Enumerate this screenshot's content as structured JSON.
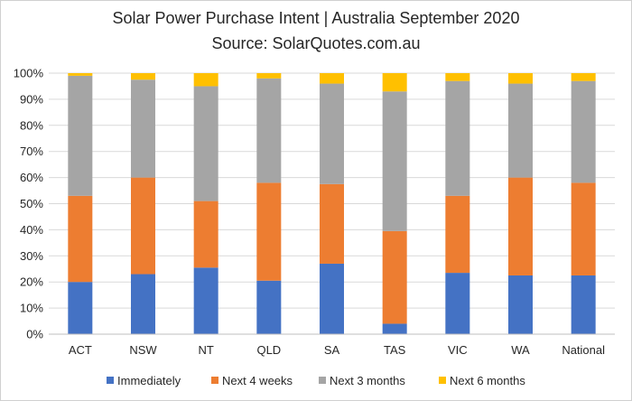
{
  "chart_data": {
    "type": "bar",
    "stacked": true,
    "title": "Solar Power Purchase Intent | Australia September 2020",
    "subtitle": "Source: SolarQuotes.com.au",
    "categories": [
      "ACT",
      "NSW",
      "NT",
      "QLD",
      "SA",
      "TAS",
      "VIC",
      "WA",
      "National"
    ],
    "series": [
      {
        "name": "Immediately",
        "color": "#4472C4",
        "values": [
          20,
          23,
          25.5,
          20.5,
          27,
          4,
          23.5,
          22.5,
          22.5
        ]
      },
      {
        "name": "Next 4 weeks",
        "color": "#ED7D31",
        "values": [
          33,
          37,
          25.5,
          37.5,
          30.5,
          35.5,
          29.5,
          37.5,
          35.5
        ]
      },
      {
        "name": "Next 3 months",
        "color": "#A5A5A5",
        "values": [
          46,
          37.5,
          44,
          40,
          38.5,
          53.5,
          44,
          36,
          39
        ]
      },
      {
        "name": "Next 6 months",
        "color": "#FFC000",
        "values": [
          1,
          2.5,
          5,
          2,
          4,
          7,
          3,
          4,
          3
        ]
      }
    ],
    "yticks": [
      "0%",
      "10%",
      "20%",
      "30%",
      "40%",
      "50%",
      "60%",
      "70%",
      "80%",
      "90%",
      "100%"
    ],
    "ylim": [
      0,
      100
    ],
    "xlabel": "",
    "ylabel": "",
    "grid": true,
    "legend": "bottom"
  }
}
